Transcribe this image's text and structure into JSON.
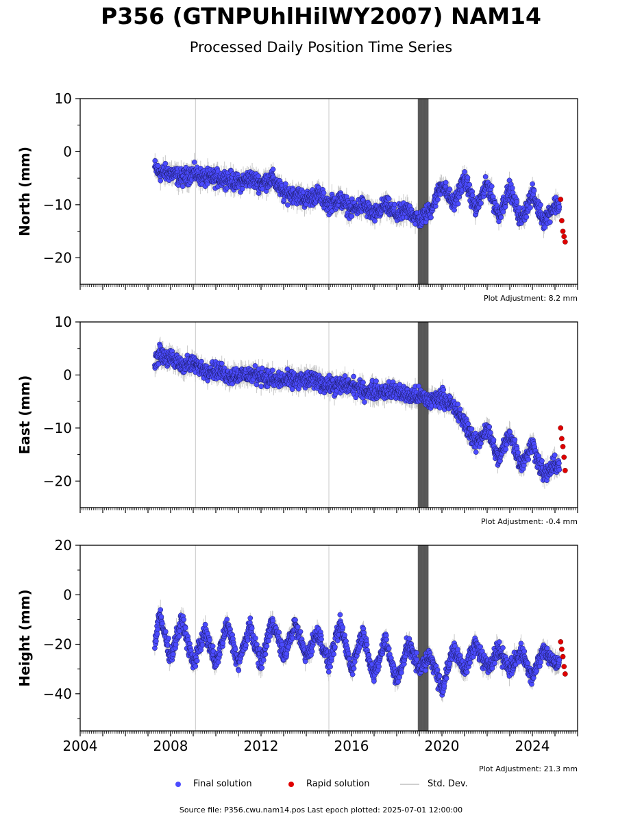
{
  "title": "P356 (GTNPUhlHilWY2007) NAM14",
  "subtitle": "Processed Daily Position Time Series",
  "legend": {
    "final_label": "Final solution",
    "rapid_label": "Rapid solution",
    "std_label": "Std. Dev."
  },
  "footer": "Source file: P356.cwu.nam14.pos  Last epoch plotted: 2025-07-01 12:00:00",
  "colors": {
    "final": "#4b4bff",
    "rapid": "#e00000",
    "std": "#c8c8c8",
    "std_dark": "#505050"
  },
  "chart_data": [
    {
      "type": "scatter",
      "ylabel": "North (mm)",
      "ylim": [
        -25,
        10
      ],
      "yticks": [
        10,
        0,
        -10,
        -20
      ],
      "ytick_labels": [
        "10",
        "0",
        "−10",
        "−20"
      ],
      "xlim": [
        2004,
        2026
      ],
      "adjustment": "Plot Adjustment: 8.2 mm",
      "series": [
        {
          "role": "final",
          "x": [
            2007.3,
            2007.5,
            2008.0,
            2008.5,
            2009.0,
            2009.5,
            2010.0,
            2010.5,
            2011.0,
            2011.5,
            2012.0,
            2012.5,
            2013.0,
            2013.5,
            2014.0,
            2014.5,
            2015.0,
            2015.5,
            2016.0,
            2016.5,
            2017.0,
            2017.5,
            2018.0,
            2018.5,
            2019.0,
            2019.5,
            2020.0,
            2020.5,
            2021.0,
            2021.5,
            2022.0,
            2022.5,
            2023.0,
            2023.5,
            2024.0,
            2024.5,
            2025.0
          ],
          "y": [
            -3,
            -4,
            -4,
            -5,
            -4,
            -5,
            -5,
            -5,
            -6,
            -5,
            -6,
            -5,
            -8,
            -8,
            -9,
            -8,
            -10,
            -9,
            -11,
            -10,
            -12,
            -10,
            -12,
            -11,
            -13,
            -11,
            -6,
            -10,
            -5,
            -11,
            -6,
            -12,
            -7,
            -13,
            -8,
            -13,
            -10
          ]
        },
        {
          "role": "rapid",
          "x": [
            2025.25,
            2025.3,
            2025.35,
            2025.4,
            2025.45
          ],
          "y": [
            -9,
            -13,
            -15,
            -16,
            -17
          ]
        }
      ]
    },
    {
      "type": "scatter",
      "ylabel": "East (mm)",
      "ylim": [
        -25,
        10
      ],
      "yticks": [
        10,
        0,
        -10,
        -20
      ],
      "ytick_labels": [
        "10",
        "0",
        "−10",
        "−20"
      ],
      "xlim": [
        2004,
        2026
      ],
      "adjustment": "Plot Adjustment: -0.4 mm",
      "series": [
        {
          "role": "final",
          "x": [
            2007.3,
            2007.5,
            2008.0,
            2008.5,
            2009.0,
            2009.5,
            2010.0,
            2010.5,
            2011.0,
            2011.5,
            2012.0,
            2012.5,
            2013.0,
            2013.5,
            2014.0,
            2014.5,
            2015.0,
            2015.5,
            2016.0,
            2016.5,
            2017.0,
            2017.5,
            2018.0,
            2018.5,
            2019.0,
            2019.5,
            2020.0,
            2020.5,
            2021.0,
            2021.5,
            2022.0,
            2022.5,
            2023.0,
            2023.5,
            2024.0,
            2024.5,
            2025.0
          ],
          "y": [
            3,
            4,
            3,
            2,
            2,
            1,
            1,
            0,
            0,
            0,
            0,
            -1,
            -1,
            -1,
            -1,
            -1,
            -2,
            -2,
            -2,
            -3,
            -3,
            -3,
            -3,
            -4,
            -4,
            -5,
            -4,
            -6,
            -9,
            -13,
            -10,
            -16,
            -11,
            -17,
            -13,
            -19,
            -17
          ]
        },
        {
          "role": "rapid",
          "x": [
            2025.25,
            2025.3,
            2025.35,
            2025.4,
            2025.45
          ],
          "y": [
            -10,
            -12,
            -13.5,
            -15.5,
            -18
          ]
        }
      ]
    },
    {
      "type": "scatter",
      "ylabel": "Height (mm)",
      "ylim": [
        -55,
        20
      ],
      "yticks": [
        20,
        0,
        -20,
        -40
      ],
      "ytick_labels": [
        "20",
        "0",
        "−20",
        "−40"
      ],
      "xlim": [
        2004,
        2026
      ],
      "xticks": [
        2004,
        2008,
        2012,
        2016,
        2020,
        2024
      ],
      "xtick_labels": [
        "2004",
        "2008",
        "2012",
        "2016",
        "2020",
        "2024"
      ],
      "adjustment": "Plot Adjustment: 21.3 mm",
      "series": [
        {
          "role": "final",
          "x": [
            2007.3,
            2007.5,
            2008.0,
            2008.5,
            2009.0,
            2009.5,
            2010.0,
            2010.5,
            2011.0,
            2011.5,
            2012.0,
            2012.5,
            2013.0,
            2013.5,
            2014.0,
            2014.5,
            2015.0,
            2015.5,
            2016.0,
            2016.5,
            2017.0,
            2017.5,
            2018.0,
            2018.5,
            2019.0,
            2019.5,
            2020.0,
            2020.5,
            2021.0,
            2021.5,
            2022.0,
            2022.5,
            2023.0,
            2023.5,
            2024.0,
            2024.5,
            2025.0
          ],
          "y": [
            -20,
            -8,
            -25,
            -10,
            -28,
            -15,
            -28,
            -12,
            -28,
            -13,
            -28,
            -10,
            -25,
            -12,
            -25,
            -15,
            -28,
            -12,
            -30,
            -15,
            -33,
            -18,
            -35,
            -20,
            -30,
            -25,
            -38,
            -22,
            -30,
            -20,
            -30,
            -22,
            -30,
            -23,
            -33,
            -22,
            -28
          ]
        },
        {
          "role": "rapid",
          "x": [
            2025.25,
            2025.3,
            2025.35,
            2025.4,
            2025.45
          ],
          "y": [
            -19,
            -22,
            -25,
            -29,
            -32
          ]
        }
      ]
    }
  ]
}
